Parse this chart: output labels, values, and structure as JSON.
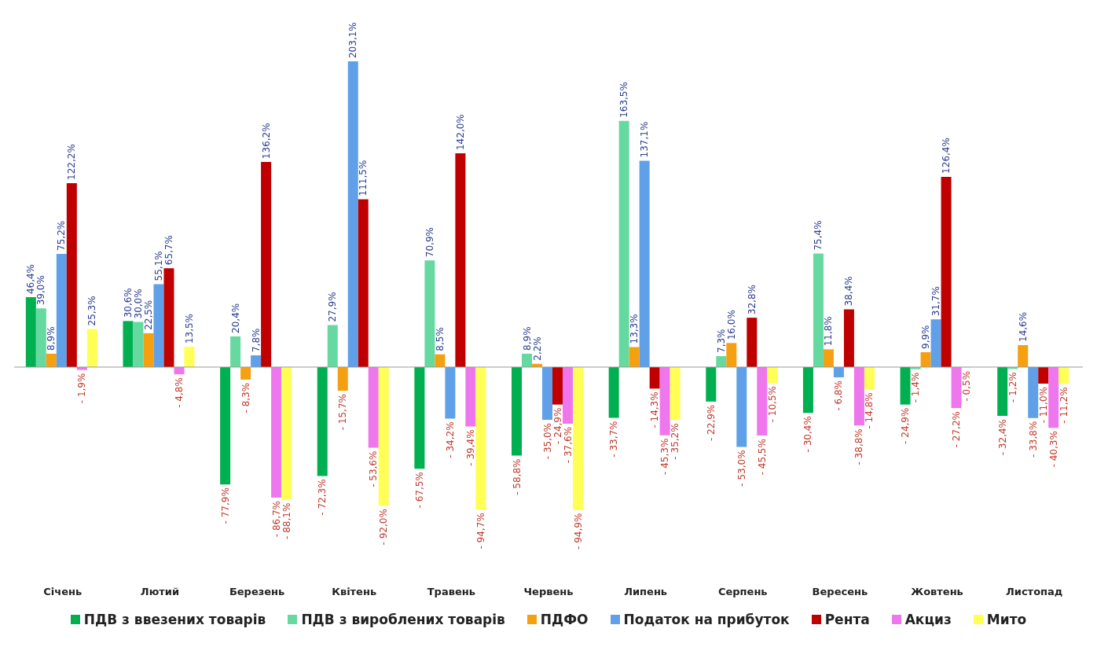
{
  "chart_data": {
    "type": "bar",
    "categories": [
      "Січень",
      "Лютий",
      "Березень",
      "Квітень",
      "Травень",
      "Червень",
      "Липень",
      "Серпень",
      "Вересень",
      "Жовтень",
      "Листопад"
    ],
    "series": [
      {
        "name": "ПДВ з ввезених товарів",
        "color": "#00b050",
        "values": [
          46.4,
          30.6,
          -77.9,
          -72.3,
          -67.5,
          -58.8,
          -33.7,
          -22.9,
          -30.4,
          -24.9,
          -32.4
        ],
        "value_labels": [
          "46,4%",
          "30,6%",
          "- 77,9%",
          "- 72,3%",
          "- 67,5%",
          "- 58,8%",
          "- 33,7%",
          "- 22,9%",
          "- 30,4%",
          "- 24,9%",
          "- 32,4%"
        ]
      },
      {
        "name": "ПДВ з вироблених товарів",
        "color": "#66d9a0",
        "values": [
          39.0,
          30.0,
          20.4,
          27.9,
          70.9,
          8.9,
          163.5,
          7.3,
          75.4,
          -1.4,
          -1.2
        ],
        "value_labels": [
          "39,0%",
          "30,0%",
          "20,4%",
          "27,9%",
          "70,9%",
          "8,9%",
          "163,5%",
          "7,3%",
          "75,4%",
          "- 1,4%",
          "- 1,2%"
        ]
      },
      {
        "name": "ПДФО",
        "color": "#f5a010",
        "values": [
          8.9,
          22.5,
          -8.3,
          -15.7,
          8.5,
          2.2,
          13.3,
          16.0,
          11.8,
          9.9,
          14.6
        ],
        "value_labels": [
          "8,9%",
          "22,5%",
          "- 8,3%",
          "- 15,7%",
          "8,5%",
          "2,2%",
          "13,3%",
          "16,0%",
          "11,8%",
          "9,9%",
          "14,6%"
        ]
      },
      {
        "name": "Податок на прибуток",
        "color": "#5fa0e8",
        "values": [
          75.2,
          55.1,
          7.8,
          203.1,
          -34.2,
          -35.0,
          137.1,
          -53.0,
          -6.8,
          31.7,
          -33.8
        ],
        "value_labels": [
          "75,2%",
          "55,1%",
          "7,8%",
          "203,1%",
          "- 34,2%",
          "- 35,0%",
          "137,1%",
          "- 53,0%",
          "- 6,8%",
          "31,7%",
          "- 33,8%"
        ]
      },
      {
        "name": "Рента",
        "color": "#c00000",
        "values": [
          122.2,
          65.7,
          136.2,
          111.5,
          142.0,
          -24.9,
          -14.3,
          32.8,
          38.4,
          126.4,
          -11.0
        ],
        "value_labels": [
          "122,2%",
          "65,7%",
          "136,2%",
          "111,5%",
          "142,0%",
          "- 24,9%",
          "- 14,3%",
          "32,8%",
          "38,4%",
          "126,4%",
          "- 11,0%"
        ]
      },
      {
        "name": "Акциз",
        "color": "#ee77ee",
        "values": [
          -1.9,
          -4.8,
          -86.7,
          -53.6,
          -39.4,
          -37.6,
          -45.3,
          -45.5,
          -38.8,
          -27.2,
          -40.3
        ],
        "value_labels": [
          "- 1,9%",
          "- 4,8%",
          "- 86,7%",
          "- 53,6%",
          "- 39,4%",
          "- 37,6%",
          "- 45,3%",
          "- 45,5%",
          "- 38,8%",
          "- 27,2%",
          "- 40,3%"
        ]
      },
      {
        "name": "Мито",
        "color": "#ffff55",
        "values": [
          25.3,
          13.5,
          -88.1,
          -92.0,
          -94.7,
          -94.9,
          -35.2,
          -10.5,
          -14.8,
          -0.5,
          -11.2
        ],
        "value_labels": [
          "25,3%",
          "13,5%",
          "- 88,1%",
          "- 92,0%",
          "- 94,7%",
          "- 94,9%",
          "- 35,2%",
          "- 10,5%",
          "- 14,8%",
          "- 0,5%",
          "- 11,2%"
        ]
      }
    ],
    "legend": "bottom"
  }
}
